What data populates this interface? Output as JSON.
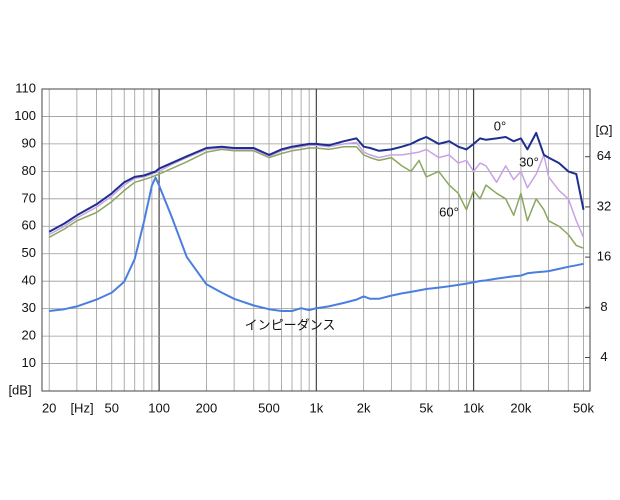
{
  "chart_data": {
    "type": "line",
    "x_label": "[Hz]",
    "y_label": "[dB]",
    "y2_label": "[Ω]",
    "xscale": "log",
    "y2scale": "log",
    "grid": true,
    "xlim": [
      18,
      55000
    ],
    "ylim": [
      0,
      110
    ],
    "y2lim": [
      2.52,
      163
    ],
    "xticks": [
      20,
      50,
      100,
      200,
      500,
      {
        "value": 1000,
        "label": "1k"
      },
      {
        "value": 2000,
        "label": "2k"
      },
      {
        "value": 5000,
        "label": "5k"
      },
      {
        "value": 10000,
        "label": "10k"
      },
      {
        "value": 20000,
        "label": "20k"
      },
      {
        "value": 50000,
        "label": "50k"
      }
    ],
    "x_minor_ticks": [
      30,
      40,
      60,
      70,
      80,
      90,
      300,
      400,
      600,
      700,
      800,
      900,
      3000,
      4000,
      6000,
      7000,
      8000,
      9000,
      30000,
      40000
    ],
    "yticks": [
      10,
      20,
      30,
      40,
      50,
      60,
      70,
      80,
      90,
      100,
      110
    ],
    "y2ticks": [
      4,
      8,
      16,
      32,
      64
    ],
    "x": [
      20,
      25,
      30,
      40,
      50,
      60,
      70,
      80,
      90,
      95,
      100,
      120,
      150,
      200,
      250,
      300,
      400,
      500,
      600,
      700,
      800,
      900,
      1000,
      1200,
      1500,
      1800,
      2000,
      2200,
      2500,
      3000,
      3500,
      4000,
      4500,
      5000,
      6000,
      7000,
      8000,
      9000,
      10000,
      11000,
      12000,
      14000,
      16000,
      18000,
      20000,
      22000,
      25000,
      28000,
      30000,
      35000,
      40000,
      45000,
      50000
    ],
    "series": [
      {
        "name": "60°",
        "color": "#8aa860",
        "values": [
          56,
          59,
          62,
          65,
          69,
          73,
          76,
          77,
          78,
          78.5,
          79,
          81,
          83.5,
          87,
          88,
          87.5,
          87.5,
          85,
          86.5,
          87.5,
          88,
          88.5,
          88.5,
          88,
          89,
          89,
          86,
          85,
          84,
          85,
          82,
          80,
          84,
          78,
          80,
          75,
          72,
          66,
          73,
          70,
          75,
          72,
          70,
          64,
          72,
          62,
          70,
          66,
          62,
          60,
          57,
          53,
          52
        ]
      },
      {
        "name": "30°",
        "color": "#c9a2e6",
        "values": [
          57,
          60,
          63,
          67,
          71,
          75,
          77.5,
          78,
          79,
          79.5,
          80,
          82.5,
          85,
          88,
          88.5,
          88,
          88,
          85.5,
          87.5,
          88.5,
          89,
          89.5,
          89.5,
          89,
          90,
          90.5,
          87,
          86,
          85,
          86,
          86,
          86.5,
          87,
          88,
          85,
          86,
          83,
          84,
          80,
          83,
          82,
          76,
          82,
          77,
          80,
          74,
          79,
          86,
          78,
          73,
          70,
          62,
          56
        ]
      },
      {
        "name": "0°",
        "color": "#1f2f8f",
        "values": [
          58,
          61,
          64,
          68,
          72,
          76,
          78,
          78.5,
          79.5,
          80,
          81,
          83,
          85.5,
          88.5,
          89,
          88.5,
          88.5,
          86,
          88,
          89,
          89.5,
          90,
          90,
          89.5,
          91,
          92,
          89,
          88.5,
          87.5,
          88,
          89,
          90,
          91.5,
          92.5,
          90,
          91,
          89,
          88,
          90,
          92,
          91.5,
          92,
          92.5,
          91,
          92,
          88,
          94,
          86,
          85,
          83,
          80,
          79,
          66
        ]
      },
      {
        "name": "インピーダンス",
        "color": "#4a7fe0",
        "axis": "y2",
        "values": [
          7.6,
          7.8,
          8.1,
          8.9,
          9.8,
          11.4,
          15.6,
          26,
          43,
          48,
          43,
          28,
          16,
          11,
          9.8,
          9,
          8.2,
          7.8,
          7.6,
          7.6,
          7.9,
          7.7,
          7.9,
          8.1,
          8.5,
          8.9,
          9.3,
          9.0,
          9.0,
          9.4,
          9.7,
          9.9,
          10.1,
          10.3,
          10.5,
          10.7,
          10.9,
          11.1,
          11.3,
          11.5,
          11.6,
          11.9,
          12.1,
          12.3,
          12.4,
          12.8,
          13.0,
          13.1,
          13.2,
          13.6,
          14.0,
          14.3,
          14.6
        ]
      }
    ]
  }
}
